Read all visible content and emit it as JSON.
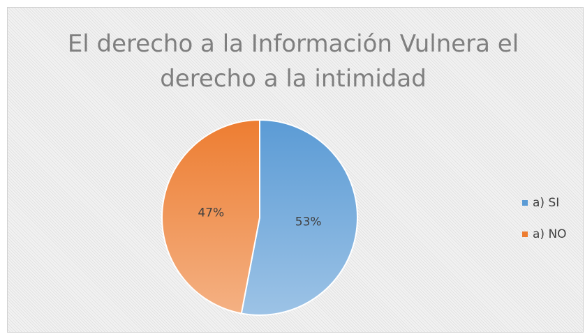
{
  "chart_data": {
    "type": "pie",
    "title": "El derecho a la Información Vulnera el derecho a la intimidad",
    "categories": [
      "a) SI",
      "a) NO"
    ],
    "values": [
      53,
      47
    ],
    "value_labels": [
      "53%",
      "47%"
    ],
    "colors": [
      "#5b9bd5",
      "#ed7d31"
    ],
    "legend": "right"
  }
}
